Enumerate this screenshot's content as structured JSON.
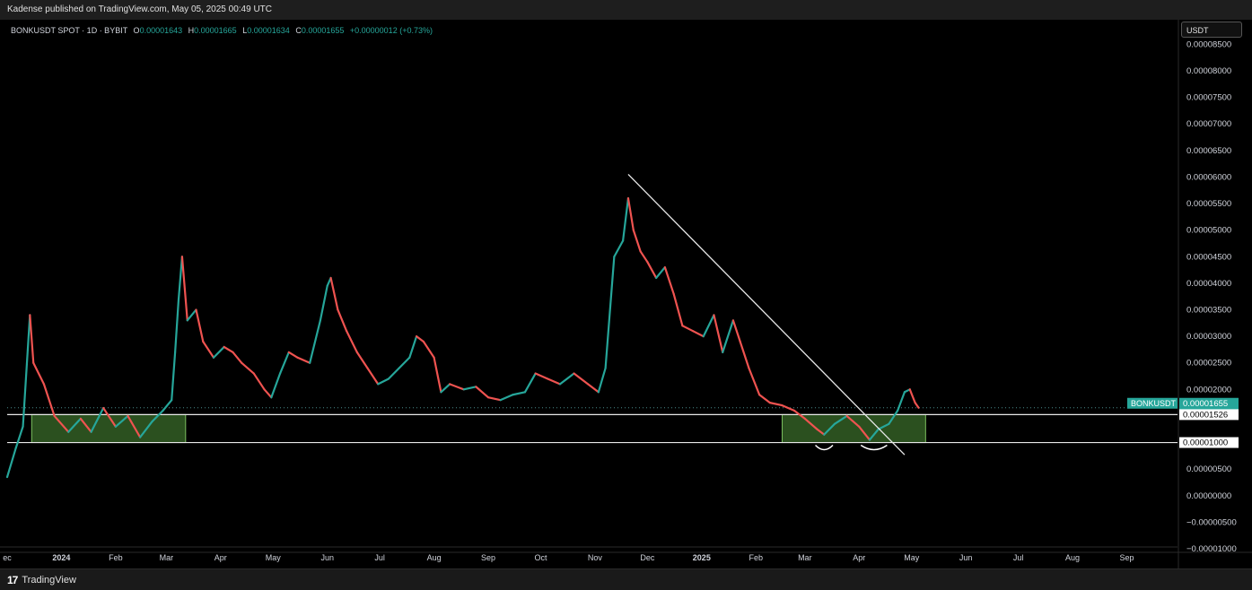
{
  "header": {
    "published": "Kadense published on TradingView.com, May 05, 2025 00:49 UTC"
  },
  "legend": {
    "symbol": "BONKUSDT SPOT · 1D · BYBIT",
    "o_label": "O",
    "o": "0.00001643",
    "h_label": "H",
    "h": "0.00001665",
    "l_label": "L",
    "l": "0.00001634",
    "c_label": "C",
    "c": "0.00001655",
    "change": "+0.00000012 (+0.73%)"
  },
  "unit": "USDT",
  "price_tags": {
    "symbol": "BONKUSDT",
    "last": "0.00001655",
    "countdown": "23:10:34",
    "level_1": "0.00001526",
    "level_2": "0.00001000"
  },
  "footer": {
    "brand": "TradingView",
    "brand_mark": "17"
  },
  "colors": {
    "up": "#26a69a",
    "down": "#ef5350",
    "box_fill": "#3a6b2a",
    "box_stroke": "#7cc060",
    "line": "#e8e8e8",
    "background": "#000000"
  },
  "chart_data": {
    "type": "line",
    "title": "BONKUSDT SPOT · 1D · BYBIT",
    "note": "candlestick close path, approximate",
    "ylim": [
      -1e-05,
      8.624e-05
    ],
    "y_ticks": [
      {
        "value": 8.5e-05,
        "label": "0.00008500"
      },
      {
        "value": 8e-05,
        "label": "0.00008000"
      },
      {
        "value": 7.5e-05,
        "label": "0.00007500"
      },
      {
        "value": 7e-05,
        "label": "0.00007000"
      },
      {
        "value": 6.5e-05,
        "label": "0.00006500"
      },
      {
        "value": 6e-05,
        "label": "0.00006000"
      },
      {
        "value": 5.5e-05,
        "label": "0.00005500"
      },
      {
        "value": 5e-05,
        "label": "0.00005000"
      },
      {
        "value": 4.5e-05,
        "label": "0.00004500"
      },
      {
        "value": 4e-05,
        "label": "0.00004000"
      },
      {
        "value": 3.5e-05,
        "label": "0.00003500"
      },
      {
        "value": 3e-05,
        "label": "0.00003000"
      },
      {
        "value": 2.5e-05,
        "label": "0.00002500"
      },
      {
        "value": 2e-05,
        "label": "0.00002000"
      },
      {
        "value": 5e-06,
        "label": "0.00000500"
      },
      {
        "value": 0,
        "label": "0.00000000"
      },
      {
        "value": -5e-06,
        "label": "−0.00000500"
      },
      {
        "value": -1e-05,
        "label": "−0.00001000"
      }
    ],
    "x_axis_start": "2023-12-01",
    "x_axis_end": "2025-09-30",
    "x_ticks": [
      {
        "date": "2023-12-01",
        "label": "ec"
      },
      {
        "date": "2024-01-01",
        "label": "2024",
        "bold": true
      },
      {
        "date": "2024-02-01",
        "label": "Feb"
      },
      {
        "date": "2024-03-01",
        "label": "Mar"
      },
      {
        "date": "2024-04-01",
        "label": "Apr"
      },
      {
        "date": "2024-05-01",
        "label": "May"
      },
      {
        "date": "2024-06-01",
        "label": "Jun"
      },
      {
        "date": "2024-07-01",
        "label": "Jul"
      },
      {
        "date": "2024-08-01",
        "label": "Aug"
      },
      {
        "date": "2024-09-01",
        "label": "Sep"
      },
      {
        "date": "2024-10-01",
        "label": "Oct"
      },
      {
        "date": "2024-11-01",
        "label": "Nov"
      },
      {
        "date": "2024-12-01",
        "label": "Dec"
      },
      {
        "date": "2025-01-01",
        "label": "2025",
        "bold": true
      },
      {
        "date": "2025-02-01",
        "label": "Feb"
      },
      {
        "date": "2025-03-01",
        "label": "Mar"
      },
      {
        "date": "2025-04-01",
        "label": "Apr"
      },
      {
        "date": "2025-05-01",
        "label": "May"
      },
      {
        "date": "2025-06-01",
        "label": "Jun"
      },
      {
        "date": "2025-07-01",
        "label": "Jul"
      },
      {
        "date": "2025-08-01",
        "label": "Aug"
      },
      {
        "date": "2025-09-01",
        "label": "Sep"
      }
    ],
    "series": [
      {
        "points": [
          [
            "2023-12-01",
            3.5e-06
          ],
          [
            "2023-12-06",
            9e-06
          ],
          [
            "2023-12-10",
            1.3e-05
          ],
          [
            "2023-12-14",
            3.4e-05
          ],
          [
            "2023-12-16",
            2.5e-05
          ],
          [
            "2023-12-22",
            2.1e-05
          ],
          [
            "2023-12-28",
            1.5e-05
          ],
          [
            "2024-01-05",
            1.2e-05
          ],
          [
            "2024-01-12",
            1.45e-05
          ],
          [
            "2024-01-18",
            1.2e-05
          ],
          [
            "2024-01-25",
            1.65e-05
          ],
          [
            "2024-02-01",
            1.3e-05
          ],
          [
            "2024-02-08",
            1.5e-05
          ],
          [
            "2024-02-15",
            1.1e-05
          ],
          [
            "2024-02-22",
            1.4e-05
          ],
          [
            "2024-02-28",
            1.6e-05
          ],
          [
            "2024-03-04",
            1.8e-05
          ],
          [
            "2024-03-06",
            2.7e-05
          ],
          [
            "2024-03-08",
            3.7e-05
          ],
          [
            "2024-03-10",
            4.5e-05
          ],
          [
            "2024-03-13",
            3.3e-05
          ],
          [
            "2024-03-18",
            3.5e-05
          ],
          [
            "2024-03-22",
            2.9e-05
          ],
          [
            "2024-03-28",
            2.6e-05
          ],
          [
            "2024-04-03",
            2.8e-05
          ],
          [
            "2024-04-08",
            2.7e-05
          ],
          [
            "2024-04-13",
            2.5e-05
          ],
          [
            "2024-04-20",
            2.3e-05
          ],
          [
            "2024-04-26",
            2e-05
          ],
          [
            "2024-04-30",
            1.85e-05
          ],
          [
            "2024-05-05",
            2.3e-05
          ],
          [
            "2024-05-10",
            2.7e-05
          ],
          [
            "2024-05-15",
            2.6e-05
          ],
          [
            "2024-05-22",
            2.5e-05
          ],
          [
            "2024-05-28",
            3.3e-05
          ],
          [
            "2024-06-01",
            3.95e-05
          ],
          [
            "2024-06-03",
            4.1e-05
          ],
          [
            "2024-06-07",
            3.5e-05
          ],
          [
            "2024-06-12",
            3.1e-05
          ],
          [
            "2024-06-18",
            2.7e-05
          ],
          [
            "2024-06-24",
            2.4e-05
          ],
          [
            "2024-06-30",
            2.1e-05
          ],
          [
            "2024-07-06",
            2.2e-05
          ],
          [
            "2024-07-12",
            2.4e-05
          ],
          [
            "2024-07-18",
            2.6e-05
          ],
          [
            "2024-07-22",
            3e-05
          ],
          [
            "2024-07-26",
            2.9e-05
          ],
          [
            "2024-08-01",
            2.6e-05
          ],
          [
            "2024-08-05",
            1.95e-05
          ],
          [
            "2024-08-10",
            2.1e-05
          ],
          [
            "2024-08-18",
            2e-05
          ],
          [
            "2024-08-25",
            2.05e-05
          ],
          [
            "2024-09-01",
            1.85e-05
          ],
          [
            "2024-09-08",
            1.8e-05
          ],
          [
            "2024-09-15",
            1.9e-05
          ],
          [
            "2024-09-22",
            1.95e-05
          ],
          [
            "2024-09-28",
            2.3e-05
          ],
          [
            "2024-10-05",
            2.2e-05
          ],
          [
            "2024-10-12",
            2.1e-05
          ],
          [
            "2024-10-20",
            2.3e-05
          ],
          [
            "2024-10-28",
            2.1e-05
          ],
          [
            "2024-11-03",
            1.95e-05
          ],
          [
            "2024-11-07",
            2.4e-05
          ],
          [
            "2024-11-12",
            4.5e-05
          ],
          [
            "2024-11-17",
            4.8e-05
          ],
          [
            "2024-11-20",
            5.6e-05
          ],
          [
            "2024-11-23",
            5e-05
          ],
          [
            "2024-11-27",
            4.6e-05
          ],
          [
            "2024-12-01",
            4.4e-05
          ],
          [
            "2024-12-06",
            4.1e-05
          ],
          [
            "2024-12-11",
            4.3e-05
          ],
          [
            "2024-12-16",
            3.8e-05
          ],
          [
            "2024-12-21",
            3.2e-05
          ],
          [
            "2024-12-27",
            3.1e-05
          ],
          [
            "2025-01-02",
            3e-05
          ],
          [
            "2025-01-08",
            3.4e-05
          ],
          [
            "2025-01-13",
            2.7e-05
          ],
          [
            "2025-01-19",
            3.3e-05
          ],
          [
            "2025-01-23",
            2.9e-05
          ],
          [
            "2025-01-28",
            2.4e-05
          ],
          [
            "2025-02-03",
            1.9e-05
          ],
          [
            "2025-02-09",
            1.75e-05
          ],
          [
            "2025-02-16",
            1.7e-05
          ],
          [
            "2025-02-23",
            1.6e-05
          ],
          [
            "2025-03-01",
            1.45e-05
          ],
          [
            "2025-03-08",
            1.25e-05
          ],
          [
            "2025-03-12",
            1.15e-05
          ],
          [
            "2025-03-18",
            1.35e-05
          ],
          [
            "2025-03-25",
            1.5e-05
          ],
          [
            "2025-04-01",
            1.3e-05
          ],
          [
            "2025-04-07",
            1.05e-05
          ],
          [
            "2025-04-12",
            1.25e-05
          ],
          [
            "2025-04-18",
            1.35e-05
          ],
          [
            "2025-04-23",
            1.6e-05
          ],
          [
            "2025-04-27",
            1.95e-05
          ],
          [
            "2025-04-30",
            2e-05
          ],
          [
            "2025-05-03",
            1.75e-05
          ],
          [
            "2025-05-05",
            1.655e-05
          ]
        ]
      }
    ],
    "hlines": [
      {
        "value": 1.526e-05,
        "label": "0.00001526"
      },
      {
        "value": 1e-05,
        "label": "0.00001000"
      },
      {
        "value": 1.655e-05,
        "label": "0.00001655",
        "style": "dotted"
      }
    ],
    "zones": [
      {
        "from": "2023-12-15",
        "to": "2024-03-12",
        "low": 1e-05,
        "high": 1.526e-05
      },
      {
        "from": "2025-02-16",
        "to": "2025-05-09",
        "low": 1e-05,
        "high": 1.526e-05
      }
    ],
    "trendline": {
      "from": [
        "2024-11-20",
        6.05e-05
      ],
      "to": [
        "2025-04-27",
        7.7e-06
      ]
    },
    "arcs": [
      {
        "from": "2025-03-07",
        "to": "2025-03-17",
        "value": 9.5e-06
      },
      {
        "from": "2025-04-02",
        "to": "2025-04-17",
        "value": 9.5e-06
      }
    ]
  }
}
